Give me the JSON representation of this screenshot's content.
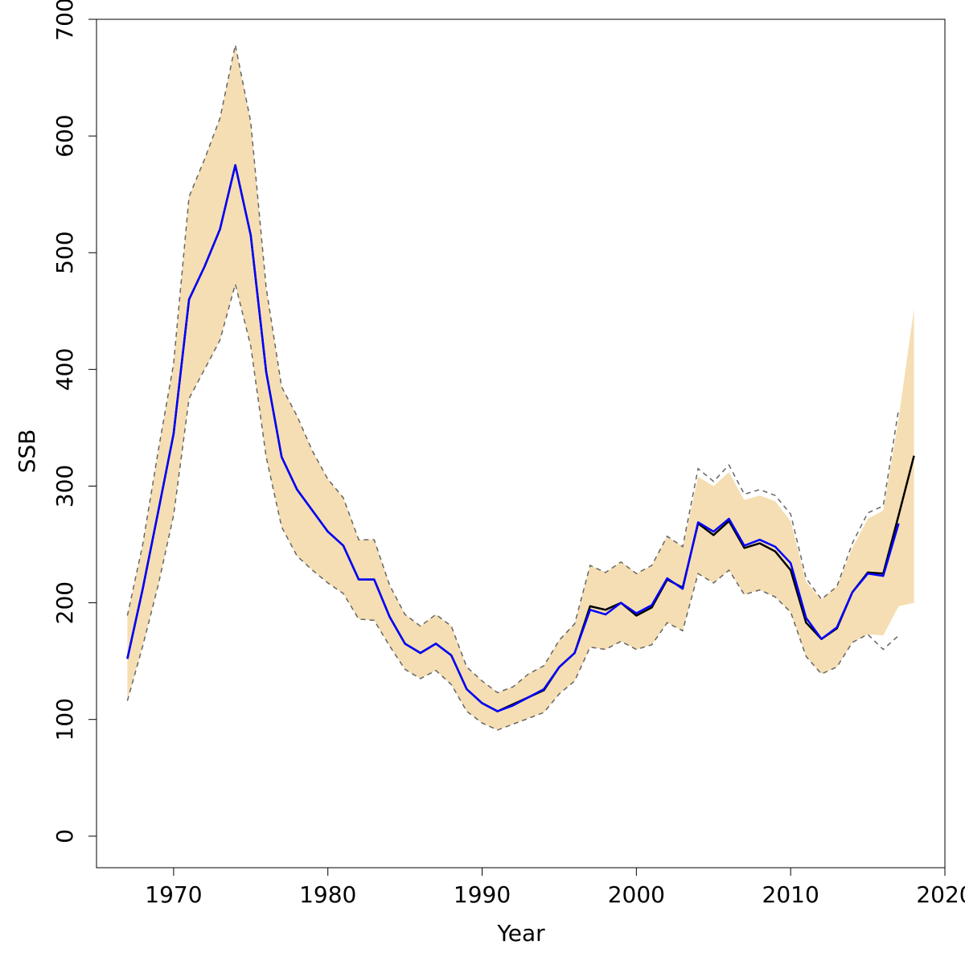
{
  "chart_data": {
    "type": "line",
    "title": "",
    "xlabel": "Year",
    "ylabel": "SSB",
    "xlim": [
      1965,
      2020
    ],
    "ylim": [
      -27,
      700
    ],
    "x_ticks": [
      1970,
      1980,
      1990,
      2000,
      2010,
      2020
    ],
    "y_ticks": [
      0,
      100,
      200,
      300,
      400,
      500,
      600,
      700
    ],
    "grid": false,
    "legend": "none",
    "band": {
      "x": [
        1967,
        1968,
        1969,
        1970,
        1971,
        1972,
        1973,
        1974,
        1975,
        1976,
        1977,
        1978,
        1979,
        1980,
        1981,
        1982,
        1983,
        1984,
        1985,
        1986,
        1987,
        1988,
        1989,
        1990,
        1991,
        1992,
        1993,
        1994,
        1995,
        1996,
        1997,
        1998,
        1999,
        2000,
        2001,
        2002,
        2003,
        2004,
        2005,
        2006,
        2007,
        2008,
        2009,
        2010,
        2011,
        2012,
        2013,
        2014,
        2015,
        2016,
        2017,
        2018
      ],
      "lower": [
        116,
        163,
        215,
        275,
        375,
        400,
        425,
        473,
        420,
        325,
        265,
        240,
        228,
        217,
        208,
        186,
        185,
        163,
        143,
        135,
        142,
        130,
        107,
        97,
        91,
        96,
        101,
        106,
        122,
        133,
        162,
        160,
        167,
        160,
        164,
        183,
        176,
        225,
        217,
        228,
        207,
        211,
        205,
        192,
        154,
        139,
        145,
        166,
        173,
        172,
        197,
        200
      ],
      "upper": [
        189,
        250,
        330,
        405,
        548,
        580,
        615,
        678,
        612,
        470,
        385,
        360,
        330,
        306,
        290,
        254,
        254,
        215,
        190,
        180,
        190,
        180,
        145,
        133,
        123,
        128,
        139,
        146,
        168,
        182,
        232,
        226,
        235,
        225,
        232,
        257,
        248,
        308,
        300,
        312,
        288,
        292,
        287,
        270,
        218,
        203,
        214,
        247,
        272,
        279,
        358,
        452
      ],
      "fill_color": "#f5deb3"
    },
    "band_outline": {
      "x": [
        1967,
        1968,
        1969,
        1970,
        1971,
        1972,
        1973,
        1974,
        1975,
        1976,
        1977,
        1978,
        1979,
        1980,
        1981,
        1982,
        1983,
        1984,
        1985,
        1986,
        1987,
        1988,
        1989,
        1990,
        1991,
        1992,
        1993,
        1994,
        1995,
        1996,
        1997,
        1998,
        1999,
        2000,
        2001,
        2002,
        2003,
        2004,
        2005,
        2006,
        2007,
        2008,
        2009,
        2010,
        2011,
        2012,
        2013,
        2014,
        2015,
        2016,
        2017
      ],
      "lower": [
        116,
        163,
        215,
        275,
        375,
        400,
        425,
        473,
        420,
        325,
        265,
        240,
        228,
        217,
        208,
        186,
        185,
        163,
        143,
        135,
        142,
        130,
        107,
        97,
        91,
        96,
        101,
        106,
        122,
        133,
        162,
        160,
        167,
        160,
        164,
        183,
        176,
        225,
        217,
        228,
        207,
        211,
        205,
        192,
        154,
        139,
        145,
        166,
        173,
        160,
        172
      ],
      "upper": [
        189,
        250,
        330,
        405,
        548,
        580,
        615,
        678,
        612,
        470,
        385,
        360,
        330,
        306,
        290,
        254,
        254,
        215,
        190,
        180,
        190,
        180,
        145,
        133,
        123,
        128,
        139,
        146,
        168,
        182,
        232,
        226,
        235,
        225,
        232,
        257,
        248,
        315,
        304,
        318,
        293,
        297,
        292,
        276,
        221,
        203,
        214,
        251,
        277,
        283,
        366
      ],
      "color": "#666666"
    },
    "series": [
      {
        "color": "#000000",
        "x": [
          1967,
          1968,
          1969,
          1970,
          1971,
          1972,
          1973,
          1974,
          1975,
          1976,
          1977,
          1978,
          1979,
          1980,
          1981,
          1982,
          1983,
          1984,
          1985,
          1986,
          1987,
          1988,
          1989,
          1990,
          1991,
          1992,
          1993,
          1994,
          1995,
          1996,
          1997,
          1998,
          1999,
          2000,
          2001,
          2002,
          2003,
          2004,
          2005,
          2006,
          2007,
          2008,
          2009,
          2010,
          2011,
          2012,
          2013,
          2014,
          2015,
          2016,
          2017,
          2018
        ],
        "values": [
          152,
          212,
          278,
          345,
          460,
          488,
          520,
          575,
          515,
          398,
          325,
          297,
          279,
          261,
          249,
          220,
          220,
          188,
          165,
          157,
          165,
          155,
          126,
          114,
          107,
          113,
          119,
          125,
          145,
          157,
          197,
          194,
          200,
          189,
          196,
          220,
          213,
          268,
          258,
          270,
          247,
          251,
          244,
          228,
          183,
          169,
          178,
          209,
          226,
          225,
          275,
          326
        ]
      },
      {
        "color": "#0000ff",
        "x": [
          1967,
          1968,
          1969,
          1970,
          1971,
          1972,
          1973,
          1974,
          1975,
          1976,
          1977,
          1978,
          1979,
          1980,
          1981,
          1982,
          1983,
          1984,
          1985,
          1986,
          1987,
          1988,
          1989,
          1990,
          1991,
          1992,
          1993,
          1994,
          1995,
          1996,
          1997,
          1998,
          1999,
          2000,
          2001,
          2002,
          2003,
          2004,
          2005,
          2006,
          2007,
          2008,
          2009,
          2010,
          2011,
          2012,
          2013,
          2014,
          2015,
          2016,
          2017
        ],
        "values": [
          152,
          212,
          278,
          345,
          460,
          488,
          520,
          575,
          515,
          398,
          325,
          297,
          279,
          261,
          249,
          220,
          220,
          188,
          165,
          157,
          165,
          155,
          126,
          114,
          107,
          112,
          119,
          126,
          145,
          157,
          194,
          190,
          200,
          191,
          198,
          221,
          212,
          269,
          261,
          272,
          249,
          254,
          248,
          234,
          187,
          169,
          179,
          209,
          225,
          223,
          268
        ]
      }
    ]
  }
}
